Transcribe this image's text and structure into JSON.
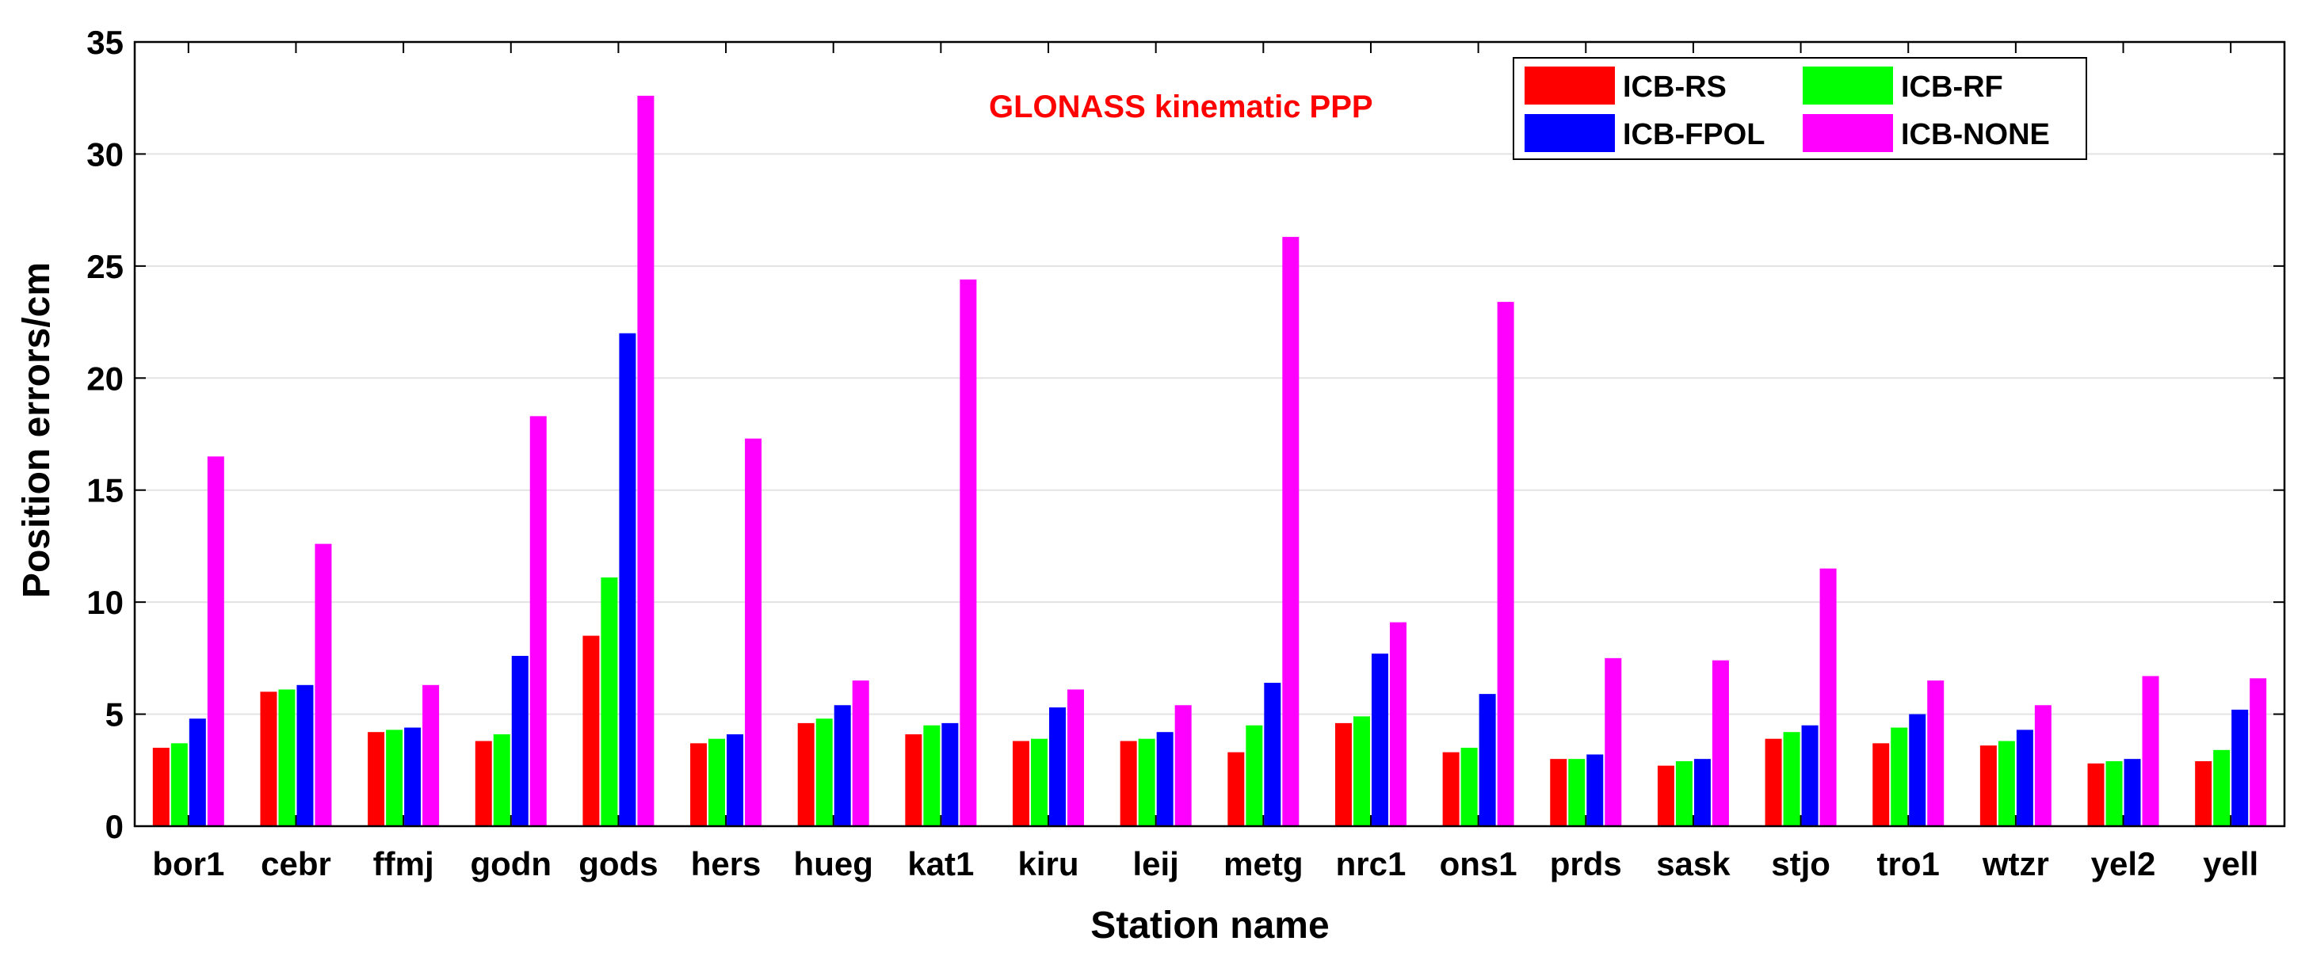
{
  "chart_data": {
    "type": "bar",
    "annotation": "GLONASS kinematic PPP",
    "annotation_color": "#ff0000",
    "xlabel": "Station name",
    "ylabel": "Position errors/cm",
    "ylim": [
      0,
      35
    ],
    "yticks": [
      0,
      5,
      10,
      15,
      20,
      25,
      30,
      35
    ],
    "grid": "horizontal",
    "legend_position": "top-right",
    "categories": [
      "bor1",
      "cebr",
      "ffmj",
      "godn",
      "gods",
      "hers",
      "hueg",
      "kat1",
      "kiru",
      "leij",
      "metg",
      "nrc1",
      "ons1",
      "prds",
      "sask",
      "stjo",
      "tro1",
      "wtzr",
      "yel2",
      "yell"
    ],
    "series": [
      {
        "name": "ICB-RS",
        "color": "#ff0000",
        "values": [
          3.5,
          6.0,
          4.2,
          3.8,
          8.5,
          3.7,
          4.6,
          4.1,
          3.8,
          3.8,
          3.3,
          4.6,
          3.3,
          3.0,
          2.7,
          3.9,
          3.7,
          3.6,
          2.8,
          2.9
        ]
      },
      {
        "name": "ICB-RF",
        "color": "#00ff00",
        "values": [
          3.7,
          6.1,
          4.3,
          4.1,
          11.1,
          3.9,
          4.8,
          4.5,
          3.9,
          3.9,
          4.5,
          4.9,
          3.5,
          3.0,
          2.9,
          4.2,
          4.4,
          3.8,
          2.9,
          3.4
        ]
      },
      {
        "name": "ICB-FPOL",
        "color": "#0000ff",
        "values": [
          4.8,
          6.3,
          4.4,
          7.6,
          22.0,
          4.1,
          5.4,
          4.6,
          5.3,
          4.2,
          6.4,
          7.7,
          5.9,
          3.2,
          3.0,
          4.5,
          5.0,
          4.3,
          3.0,
          5.2
        ]
      },
      {
        "name": "ICB-NONE",
        "color": "#ff00ff",
        "values": [
          16.5,
          12.6,
          6.3,
          18.3,
          32.6,
          17.3,
          6.5,
          24.4,
          6.1,
          5.4,
          26.3,
          9.1,
          23.4,
          7.5,
          7.4,
          11.5,
          6.5,
          5.4,
          6.7,
          6.6
        ]
      }
    ]
  }
}
